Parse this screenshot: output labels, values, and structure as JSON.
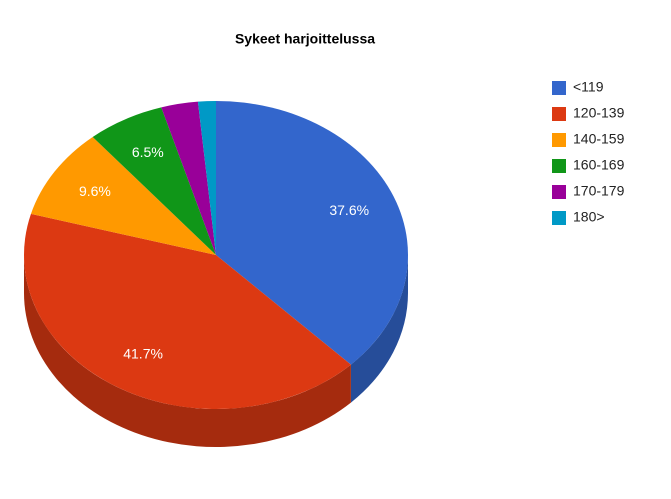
{
  "chart_data": {
    "type": "pie",
    "title": "Sykeet harjoittelussa",
    "categories": [
      "<119",
      "120-139",
      "140-159",
      "160-169",
      "170-179",
      "180>"
    ],
    "values": [
      37.6,
      41.7,
      9.6,
      6.5,
      3.1,
      1.5
    ],
    "value_labels": [
      "37.6%",
      "41.7%",
      "9.6%",
      "6.5%",
      null,
      null
    ],
    "colors": [
      "#3366cc",
      "#dc3912",
      "#ff9900",
      "#109618",
      "#990099",
      "#0099c6"
    ],
    "legend": "right",
    "three_d": true
  }
}
